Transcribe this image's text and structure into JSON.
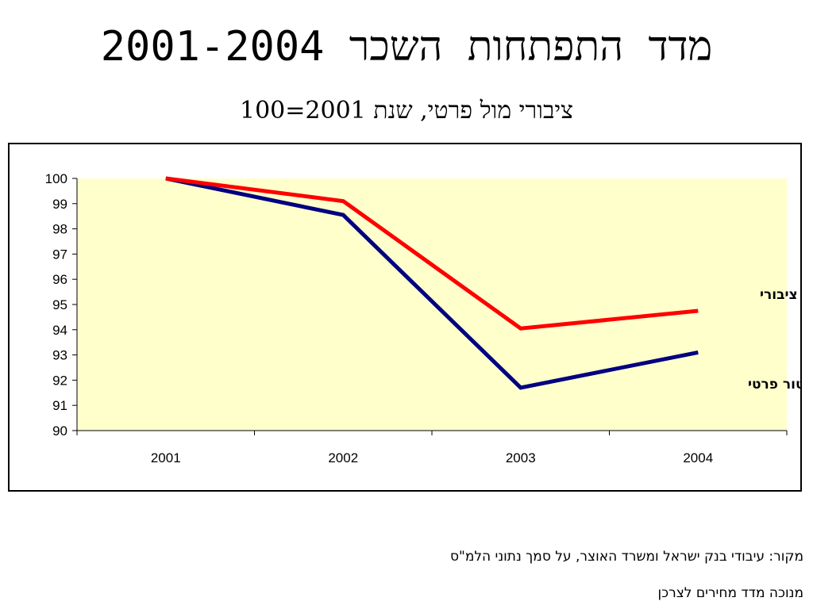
{
  "slide": {
    "title": "מדד התפתחות השכר 2001-2004",
    "subtitle": "ציבורי מול פרטי, שנת 2001=100",
    "source_line": "מקור: עיבודי בנק ישראל ומשרד האוצר, על סמך נתוני הלמ\"ס",
    "deflator_line": "מנוכה מדד מחירים לצרכן"
  },
  "chart_data": {
    "type": "line",
    "title": "מדד התפתחות השכר 2001-2004",
    "subtitle": "ציבורי מול פרטי, שנת 2001=100",
    "xlabel": "",
    "ylabel": "",
    "categories": [
      "2001",
      "2002",
      "2003",
      "2004"
    ],
    "ylim": [
      90,
      100
    ],
    "yticks": [
      "90",
      "91",
      "92",
      "93",
      "94",
      "95",
      "96",
      "97",
      "98",
      "99",
      "100"
    ],
    "grid": false,
    "plot_background": "#FFFFCC",
    "legend": "inline labels at right",
    "series": [
      {
        "name": "סקטור ציבורי",
        "color": "#FF0000",
        "values": [
          100,
          99.1,
          94.05,
          94.75
        ]
      },
      {
        "name": "סקטור פרטי",
        "color": "#000080",
        "values": [
          100,
          98.55,
          91.7,
          93.1
        ]
      }
    ]
  }
}
